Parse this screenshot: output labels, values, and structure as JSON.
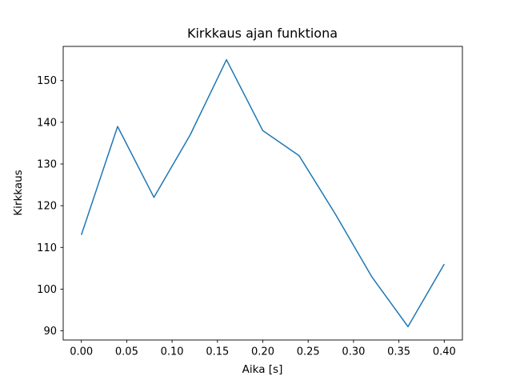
{
  "figure": {
    "title": "Kirkkaus ajan funktiona",
    "xlabel": "Aika [s]",
    "ylabel": "Kirkkaus"
  },
  "chart_data": {
    "type": "line",
    "title": "Kirkkaus ajan funktiona",
    "xlabel": "Aika [s]",
    "ylabel": "Kirkkaus",
    "x": [
      0.0,
      0.04,
      0.08,
      0.12,
      0.16,
      0.2,
      0.24,
      0.28,
      0.32,
      0.36,
      0.4
    ],
    "values": [
      113,
      139,
      122,
      137,
      155,
      138,
      132,
      118,
      103,
      91,
      106
    ],
    "series_name": "Kirkkaus",
    "xticks": [
      0.0,
      0.05,
      0.1,
      0.15,
      0.2,
      0.25,
      0.3,
      0.35,
      0.4
    ],
    "yticks": [
      90,
      100,
      110,
      120,
      130,
      140,
      150
    ],
    "xlim": [
      -0.02,
      0.42
    ],
    "ylim": [
      87.8,
      158.2
    ],
    "grid": false,
    "legend": "none",
    "line_color": "#1f77b4",
    "line_width": 1.5,
    "spine_color": "#000000",
    "background": "#ffffff"
  }
}
